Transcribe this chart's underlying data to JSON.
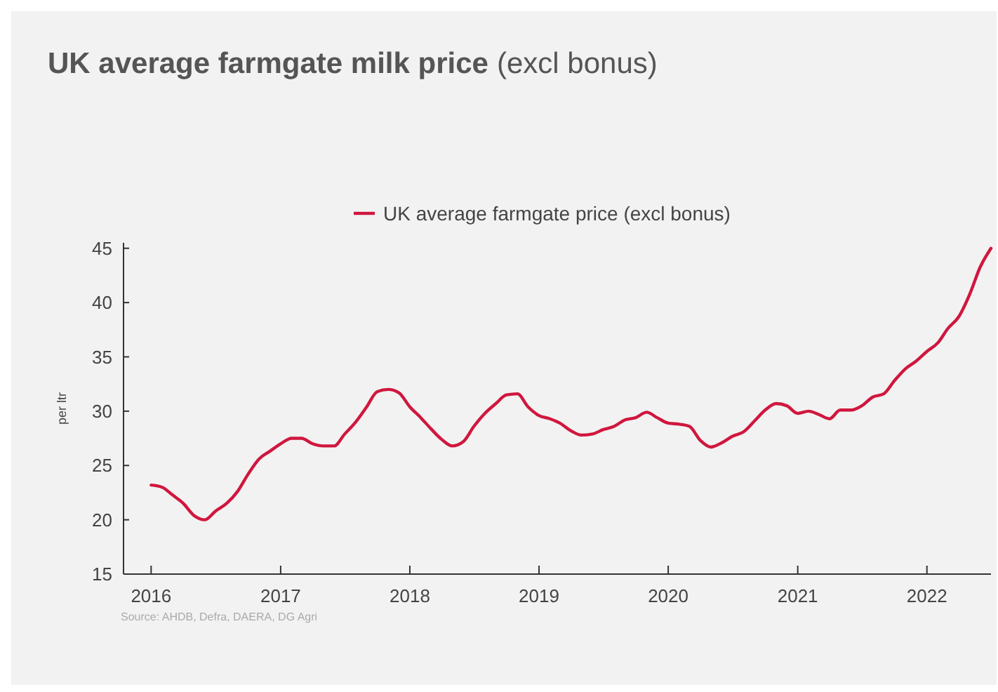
{
  "chart_data": {
    "type": "line",
    "title": "UK average farmgate milk price",
    "subtitle": "(excl bonus)",
    "ylabel": "per ltr",
    "annotations": [
      "Source: AHDB, Defra, DAERA, DG Agri"
    ],
    "x": [
      "2016-01",
      "2016-02",
      "2016-03",
      "2016-04",
      "2016-05",
      "2016-06",
      "2016-07",
      "2016-08",
      "2016-09",
      "2016-10",
      "2016-11",
      "2016-12",
      "2017-01",
      "2017-02",
      "2017-03",
      "2017-04",
      "2017-05",
      "2017-06",
      "2017-07",
      "2017-08",
      "2017-09",
      "2017-10",
      "2017-11",
      "2017-12",
      "2018-01",
      "2018-02",
      "2018-03",
      "2018-04",
      "2018-05",
      "2018-06",
      "2018-07",
      "2018-08",
      "2018-09",
      "2018-10",
      "2018-11",
      "2018-12",
      "2019-01",
      "2019-02",
      "2019-03",
      "2019-04",
      "2019-05",
      "2019-06",
      "2019-07",
      "2019-08",
      "2019-09",
      "2019-10",
      "2019-11",
      "2019-12",
      "2020-01",
      "2020-02",
      "2020-03",
      "2020-04",
      "2020-05",
      "2020-06",
      "2020-07",
      "2020-08",
      "2020-09",
      "2020-10",
      "2020-11",
      "2020-12",
      "2021-01",
      "2021-02",
      "2021-03",
      "2021-04",
      "2021-05",
      "2021-06",
      "2021-07",
      "2021-08",
      "2021-09",
      "2021-10",
      "2021-11",
      "2021-12",
      "2022-01",
      "2022-02",
      "2022-03",
      "2022-04",
      "2022-05",
      "2022-06",
      "2022-07"
    ],
    "series": [
      {
        "name": "UK average farmgate price (excl bonus)",
        "color": "#d0173e",
        "values": [
          23.2,
          23.0,
          22.3,
          21.5,
          20.4,
          20.0,
          20.8,
          21.5,
          22.6,
          24.2,
          25.6,
          26.3,
          27.0,
          27.5,
          27.5,
          27.0,
          26.8,
          26.8,
          27.9,
          29.0,
          30.4,
          31.8,
          32.0,
          31.7,
          30.4,
          29.4,
          28.4,
          27.4,
          26.8,
          27.2,
          28.6,
          29.8,
          30.7,
          31.5,
          31.6,
          30.4,
          29.6,
          29.3,
          28.9,
          28.2,
          27.8,
          27.9,
          28.3,
          28.6,
          29.2,
          29.4,
          29.9,
          29.4,
          28.9,
          28.8,
          28.6,
          27.3,
          26.7,
          27.1,
          27.7,
          28.1,
          29.1,
          30.1,
          30.7,
          30.5,
          29.8,
          30.0,
          29.7,
          29.3,
          30.1,
          30.1,
          30.5,
          31.3,
          31.6,
          32.8,
          33.9,
          34.6,
          35.5,
          36.3,
          37.6,
          38.7,
          40.7,
          43.3,
          45.0
        ]
      }
    ],
    "xlim": [
      "2015-10-15",
      "2022-07-01"
    ],
    "xticks": [
      {
        "value": "2016-01",
        "label": "2016"
      },
      {
        "value": "2017-01",
        "label": "2017"
      },
      {
        "value": "2018-01",
        "label": "2018"
      },
      {
        "value": "2019-01",
        "label": "2019"
      },
      {
        "value": "2020-01",
        "label": "2020"
      },
      {
        "value": "2021-01",
        "label": "2021"
      },
      {
        "value": "2022-01",
        "label": "2022"
      }
    ],
    "ylim": [
      15,
      45.5
    ],
    "yticks": [
      15,
      20,
      25,
      30,
      35,
      40,
      45
    ],
    "grid": false,
    "legend": "top",
    "marker": "none",
    "line_style": "solid"
  }
}
